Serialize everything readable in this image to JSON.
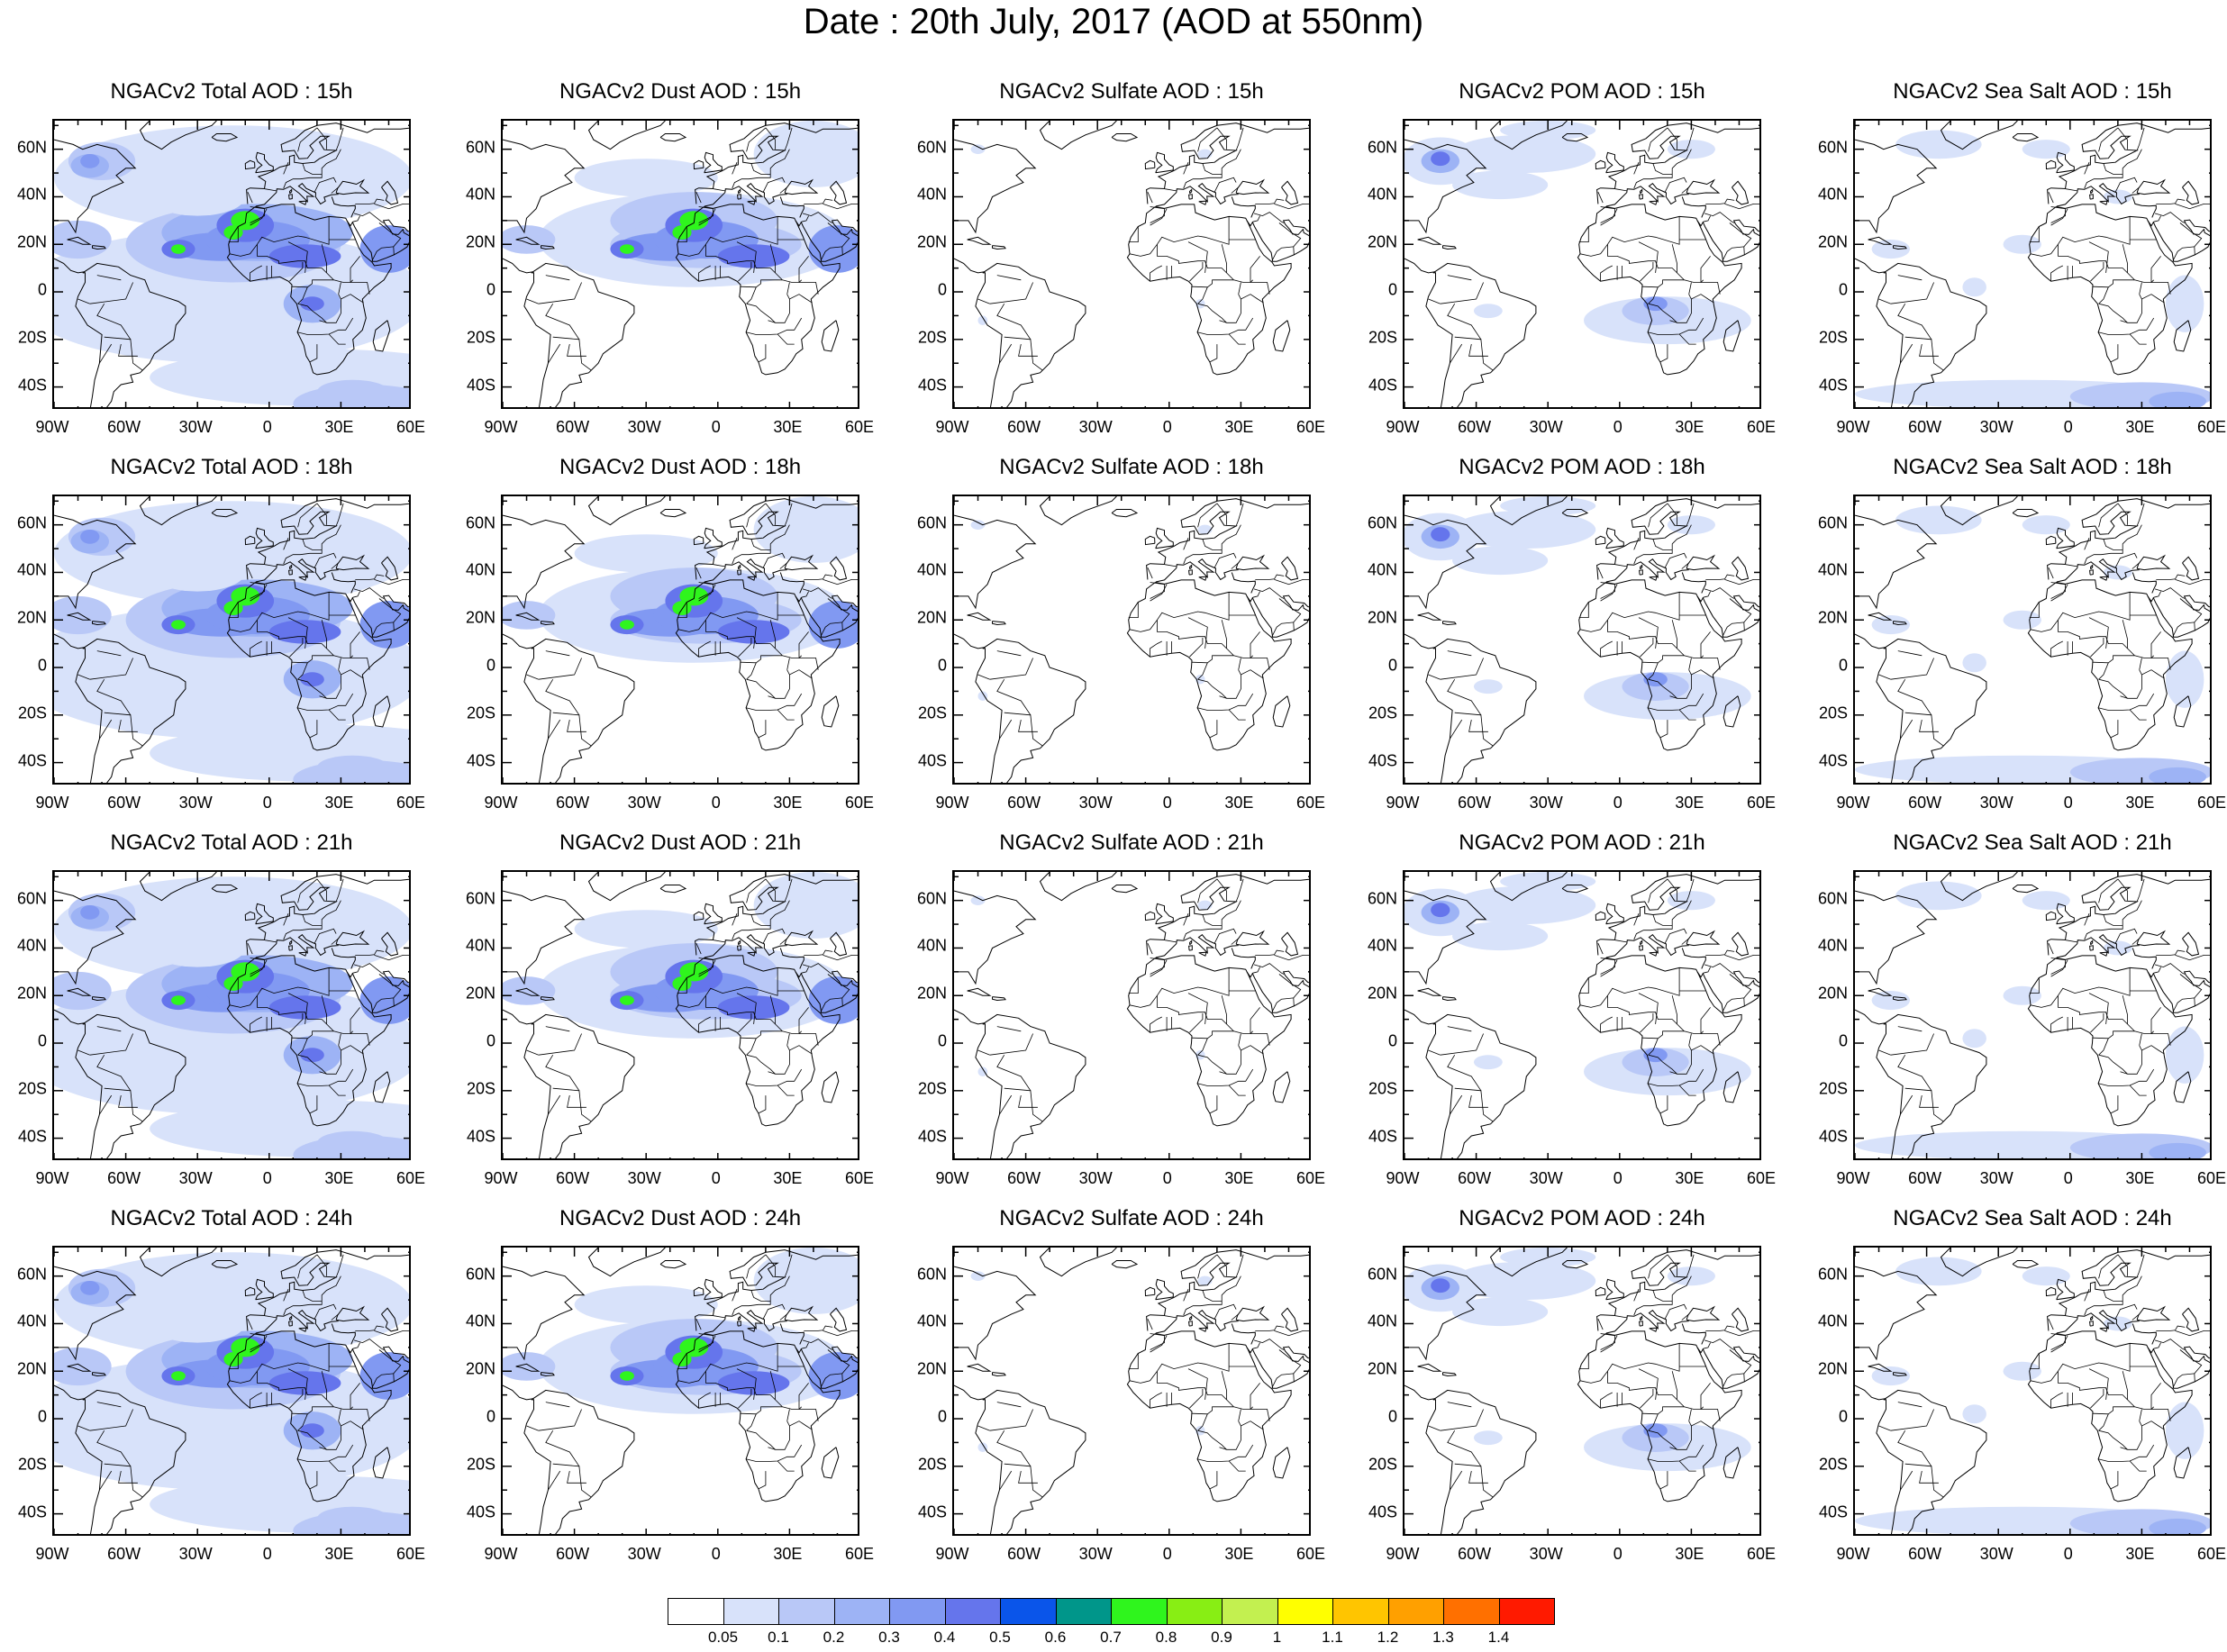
{
  "title": "Date : 20th July, 2017 (AOD at 550nm)",
  "panels": [
    {
      "title": "NGACv2 Total AOD : 15h",
      "species": "total"
    },
    {
      "title": "NGACv2 Dust AOD : 15h",
      "species": "dust"
    },
    {
      "title": "NGACv2 Sulfate AOD : 15h",
      "species": "sulfate"
    },
    {
      "title": "NGACv2 POM AOD : 15h",
      "species": "pom"
    },
    {
      "title": "NGACv2 Sea Salt AOD : 15h",
      "species": "seasalt"
    },
    {
      "title": "NGACv2 Total AOD : 18h",
      "species": "total"
    },
    {
      "title": "NGACv2 Dust AOD : 18h",
      "species": "dust"
    },
    {
      "title": "NGACv2 Sulfate AOD : 18h",
      "species": "sulfate"
    },
    {
      "title": "NGACv2 POM AOD : 18h",
      "species": "pom"
    },
    {
      "title": "NGACv2 Sea Salt AOD : 18h",
      "species": "seasalt"
    },
    {
      "title": "NGACv2 Total AOD : 21h",
      "species": "total"
    },
    {
      "title": "NGACv2 Dust AOD : 21h",
      "species": "dust"
    },
    {
      "title": "NGACv2 Sulfate AOD : 21h",
      "species": "sulfate"
    },
    {
      "title": "NGACv2 POM AOD : 21h",
      "species": "pom"
    },
    {
      "title": "NGACv2 Sea Salt AOD : 21h",
      "species": "seasalt"
    },
    {
      "title": "NGACv2 Total AOD : 24h",
      "species": "total"
    },
    {
      "title": "NGACv2 Dust AOD : 24h",
      "species": "dust"
    },
    {
      "title": "NGACv2 Sulfate AOD : 24h",
      "species": "sulfate"
    },
    {
      "title": "NGACv2 POM AOD : 24h",
      "species": "pom"
    },
    {
      "title": "NGACv2 Sea Salt  AOD : 24h",
      "species": "seasalt"
    }
  ],
  "map_extent": {
    "lon": [
      -90,
      60
    ],
    "lat": [
      -50,
      72
    ]
  },
  "lon_ticks": [
    {
      "value": -90,
      "label": "90W"
    },
    {
      "value": -60,
      "label": "60W"
    },
    {
      "value": -30,
      "label": "30W"
    },
    {
      "value": 0,
      "label": "0"
    },
    {
      "value": 30,
      "label": "30E"
    },
    {
      "value": 60,
      "label": "60E"
    }
  ],
  "lat_ticks": [
    {
      "value": 60,
      "label": "60N"
    },
    {
      "value": 40,
      "label": "40N"
    },
    {
      "value": 20,
      "label": "20N"
    },
    {
      "value": 0,
      "label": "0"
    },
    {
      "value": -20,
      "label": "20S"
    },
    {
      "value": -40,
      "label": "40S"
    }
  ],
  "colorbar": {
    "labels": [
      "0.05",
      "0.1",
      "0.2",
      "0.3",
      "0.4",
      "0.5",
      "0.6",
      "0.7",
      "0.8",
      "0.9",
      "1",
      "1.1",
      "1.2",
      "1.3",
      "1.4"
    ],
    "colors": [
      "#ffffff",
      "#d8e2fa",
      "#b9c8f7",
      "#9db3f5",
      "#8199f2",
      "#6575ec",
      "#0a55ea",
      "#00968a",
      "#2ff51d",
      "#88ee14",
      "#c3f050",
      "#ffff00",
      "#ffc500",
      "#ffa000",
      "#ff7000",
      "#ff1a00"
    ]
  }
}
